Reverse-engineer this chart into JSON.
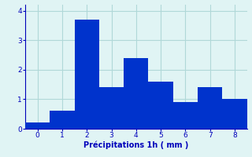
{
  "categories": [
    0,
    1,
    2,
    3,
    4,
    5,
    6,
    7,
    8
  ],
  "values": [
    0.2,
    0.6,
    3.7,
    1.4,
    2.4,
    1.6,
    0.9,
    1.4,
    1.0
  ],
  "bar_color": "#0033cc",
  "background_color": "#e0f4f4",
  "grid_color": "#b0d8d8",
  "xlabel": "Précipitations 1h ( mm )",
  "xlabel_color": "#0000bb",
  "tick_color": "#0000bb",
  "ylim": [
    0,
    4.2
  ],
  "yticks": [
    0,
    1,
    2,
    3,
    4
  ],
  "bar_width": 1.0
}
